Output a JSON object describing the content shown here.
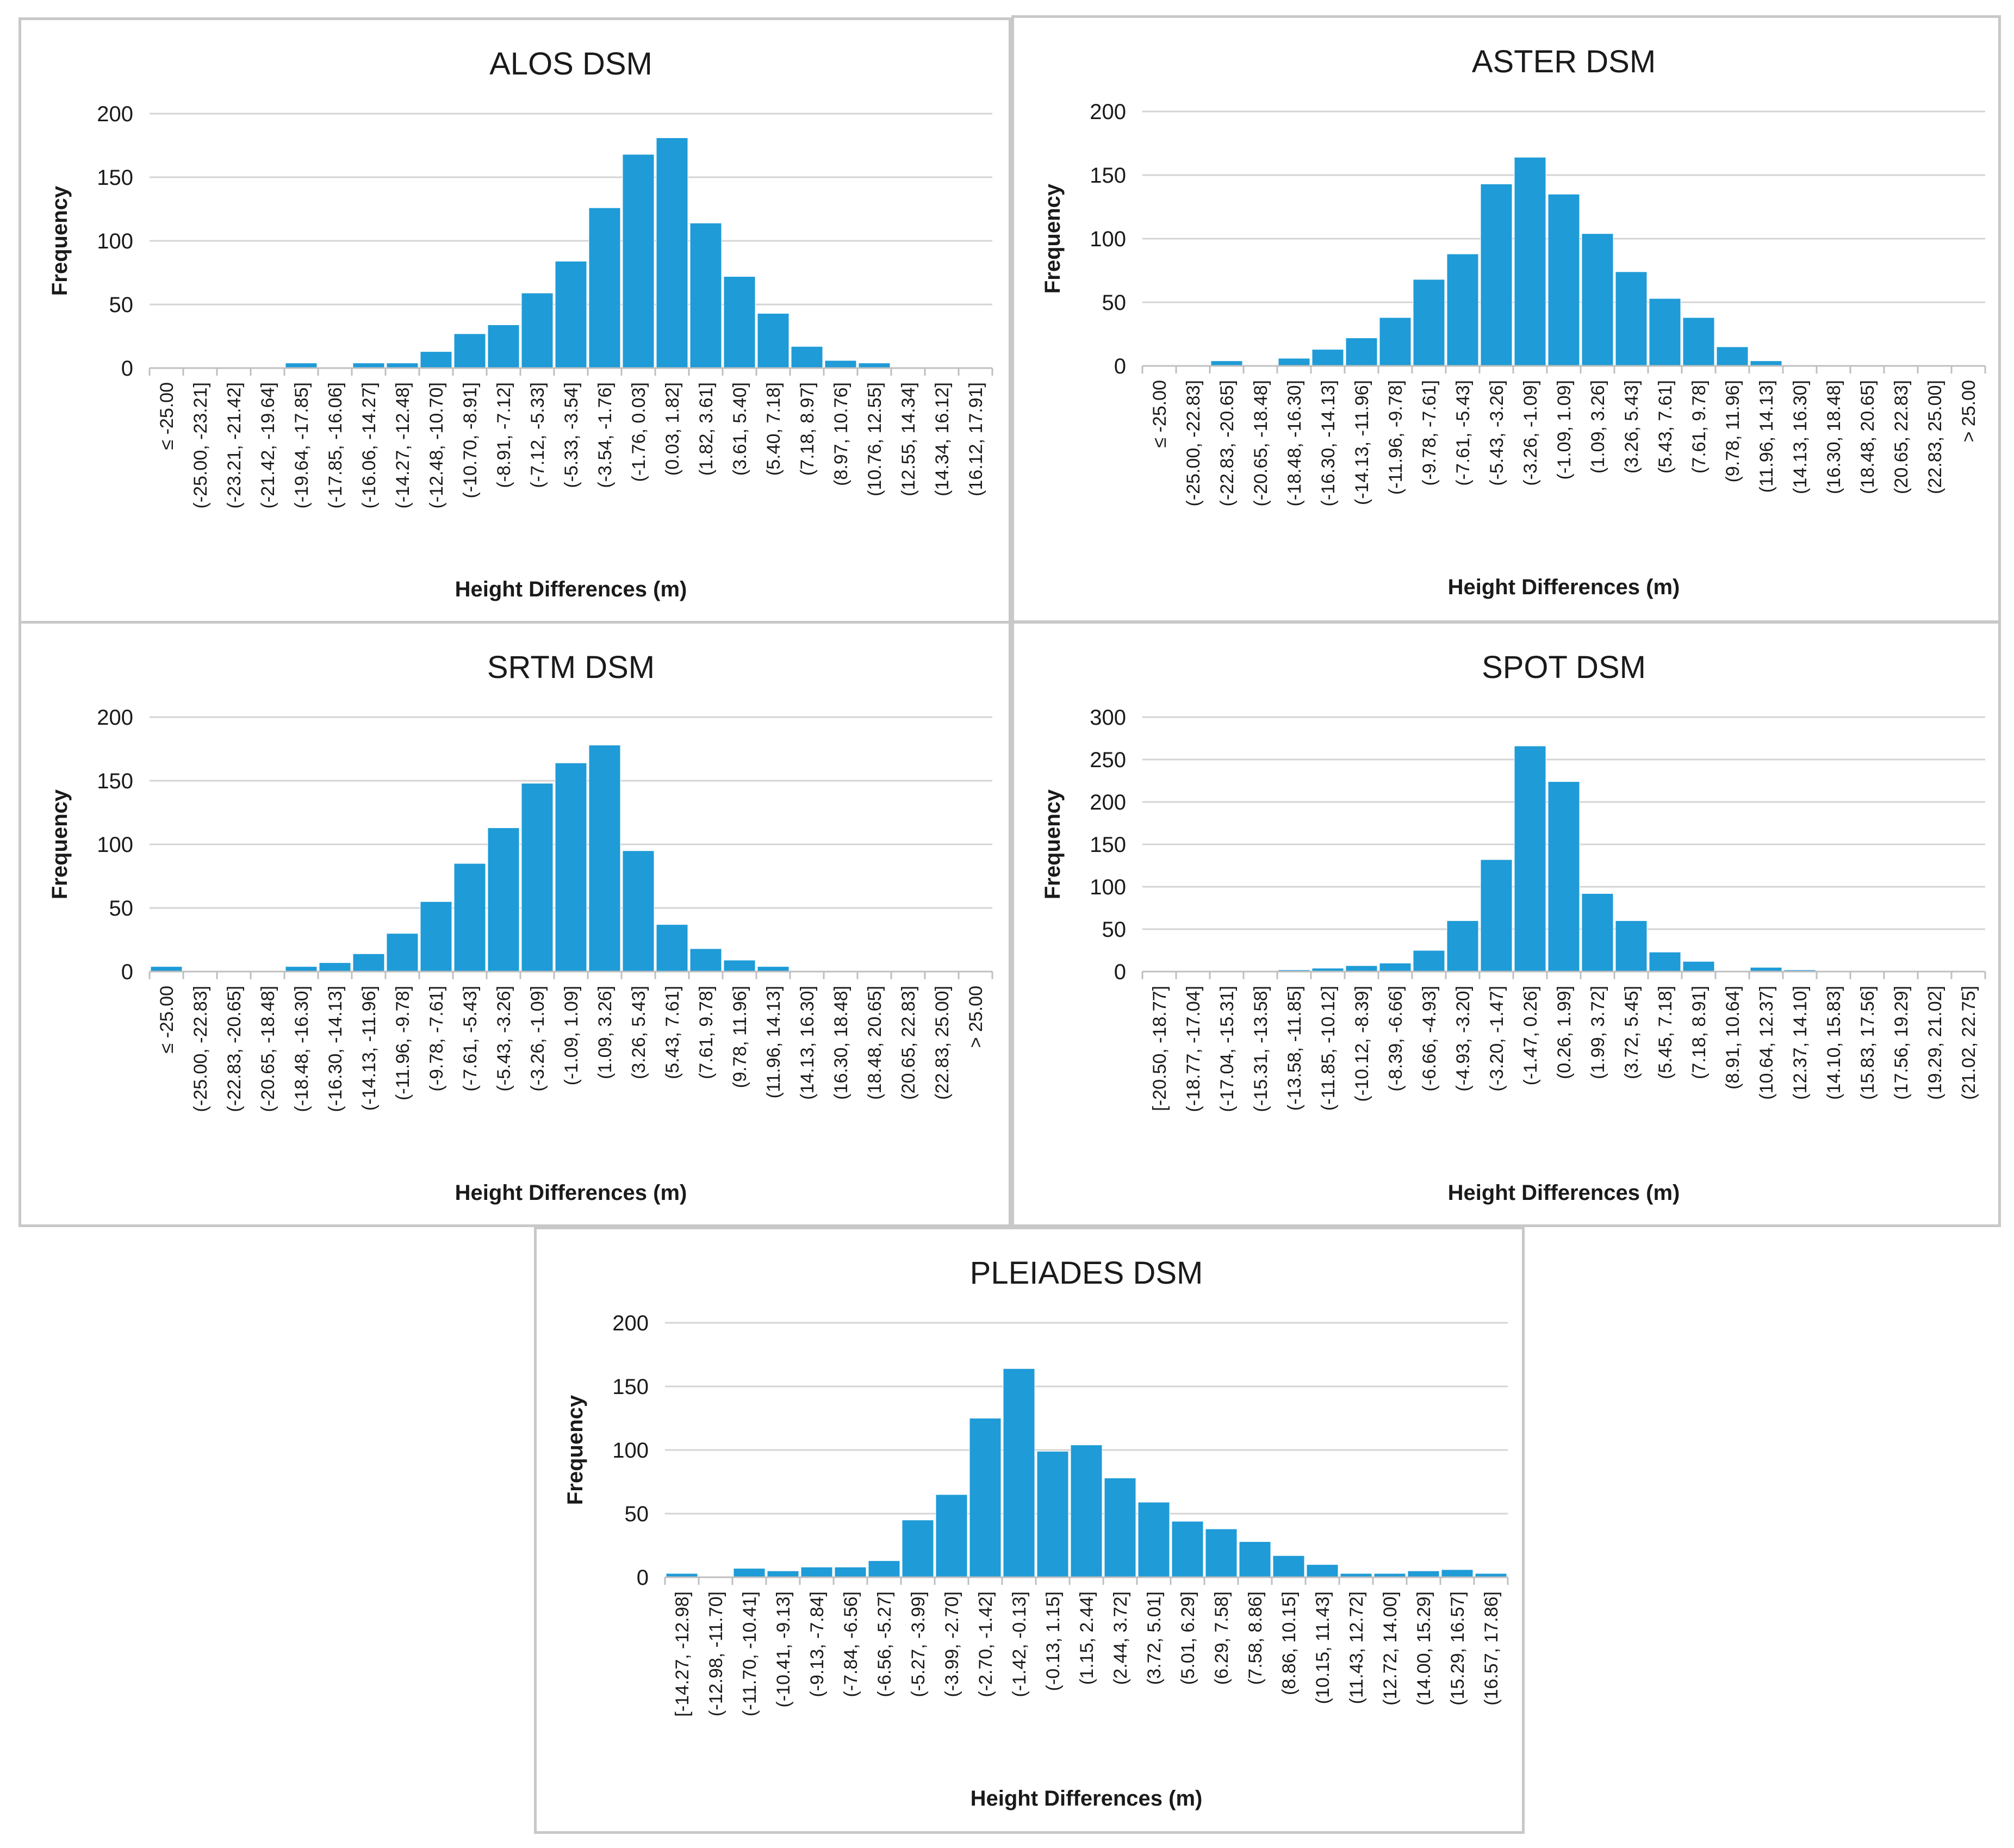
{
  "chart_data": [
    {
      "type": "bar",
      "title": "ALOS DSM",
      "xlabel": "Height Differences (m)",
      "ylabel": "Frequency",
      "ylim": [
        0,
        200
      ],
      "yticks": [
        0,
        50,
        100,
        150,
        200
      ],
      "grid": true,
      "color": "#1f9bd7",
      "categories": [
        "≤ -25.00",
        "(-25.00, -23.21]",
        "(-23.21, -21.42]",
        "(-21.42, -19.64]",
        "(-19.64, -17.85]",
        "(-17.85, -16.06]",
        "(-16.06, -14.27]",
        "(-14.27, -12.48]",
        "(-12.48, -10.70]",
        "(-10.70, -8.91]",
        "(-8.91, -7.12]",
        "(-7.12, -5.33]",
        "(-5.33, -3.54]",
        "(-3.54, -1.76]",
        "(-1.76, 0.03]",
        "(0.03, 1.82]",
        "(1.82, 3.61]",
        "(3.61, 5.40]",
        "(5.40, 7.18]",
        "(7.18, 8.97]",
        "(8.97, 10.76]",
        "(10.76, 12.55]",
        "(12.55, 14.34]",
        "(14.34, 16.12]",
        "(16.12, 17.91]"
      ],
      "values": [
        0,
        0,
        0,
        0,
        4,
        0,
        4,
        4,
        13,
        27,
        34,
        59,
        84,
        126,
        168,
        181,
        114,
        72,
        43,
        17,
        6,
        4,
        0,
        0,
        0
      ]
    },
    {
      "type": "bar",
      "title": "ASTER DSM",
      "xlabel": "Height Differences (m)",
      "ylabel": "Frequency",
      "ylim": [
        0,
        200
      ],
      "yticks": [
        0,
        50,
        100,
        150,
        200
      ],
      "grid": true,
      "color": "#1f9bd7",
      "categories": [
        "≤ -25.00",
        "(-25.00, -22.83]",
        "(-22.83, -20.65]",
        "(-20.65, -18.48]",
        "(-18.48, -16.30]",
        "(-16.30, -14.13]",
        "(-14.13, -11.96]",
        "(-11.96, -9.78]",
        "(-9.78, -7.61]",
        "(-7.61, -5.43]",
        "(-5.43, -3.26]",
        "(-3.26, -1.09]",
        "(-1.09, 1.09]",
        "(1.09, 3.26]",
        "(3.26, 5.43]",
        "(5.43, 7.61]",
        "(7.61, 9.78]",
        "(9.78, 11.96]",
        "(11.96, 14.13]",
        "(14.13, 16.30]",
        "(16.30, 18.48]",
        "(18.48, 20.65]",
        "(20.65, 22.83]",
        "(22.83, 25.00]",
        "> 25.00"
      ],
      "values": [
        0,
        0,
        4,
        0,
        6,
        13,
        22,
        38,
        68,
        88,
        143,
        164,
        135,
        104,
        74,
        53,
        38,
        15,
        4,
        0,
        0,
        0,
        0,
        0,
        0
      ]
    },
    {
      "type": "bar",
      "title": "SRTM DSM",
      "xlabel": "Height Differences (m)",
      "ylabel": "Frequency",
      "ylim": [
        0,
        200
      ],
      "yticks": [
        0,
        50,
        100,
        150,
        200
      ],
      "grid": true,
      "color": "#1f9bd7",
      "categories": [
        "≤ -25.00",
        "(-25.00, -22.83]",
        "(-22.83, -20.65]",
        "(-20.65, -18.48]",
        "(-18.48, -16.30]",
        "(-16.30, -14.13]",
        "(-14.13, -11.96]",
        "(-11.96, -9.78]",
        "(-9.78, -7.61]",
        "(-7.61, -5.43]",
        "(-5.43, -3.26]",
        "(-3.26, -1.09]",
        "(-1.09, 1.09]",
        "(1.09, 3.26]",
        "(3.26, 5.43]",
        "(5.43, 7.61]",
        "(7.61, 9.78]",
        "(9.78, 11.96]",
        "(11.96, 14.13]",
        "(14.13, 16.30]",
        "(16.30, 18.48]",
        "(18.48, 20.65]",
        "(20.65, 22.83]",
        "(22.83, 25.00]",
        "> 25.00"
      ],
      "values": [
        4,
        0,
        0,
        0,
        4,
        7,
        14,
        30,
        55,
        85,
        113,
        148,
        164,
        178,
        95,
        37,
        18,
        9,
        4,
        0,
        0,
        0,
        0,
        0,
        0
      ]
    },
    {
      "type": "bar",
      "title": "SPOT DSM",
      "xlabel": "Height Differences (m)",
      "ylabel": "Frequency",
      "ylim": [
        0,
        300
      ],
      "yticks": [
        0,
        50,
        100,
        150,
        200,
        250,
        300
      ],
      "grid": true,
      "color": "#1f9bd7",
      "categories": [
        "[-20.50, -18.77]",
        "(-18.77, -17.04]",
        "(-17.04, -15.31]",
        "(-15.31, -13.58]",
        "(-13.58, -11.85]",
        "(-11.85, -10.12]",
        "(-10.12, -8.39]",
        "(-8.39, -6.66]",
        "(-6.66, -4.93]",
        "(-4.93, -3.20]",
        "(-3.20, -1.47]",
        "(-1.47, 0.26]",
        "(0.26, 1.99]",
        "(1.99, 3.72]",
        "(3.72, 5.45]",
        "(5.45, 7.18]",
        "(7.18, 8.91]",
        "(8.91, 10.64]",
        "(10.64, 12.37]",
        "(12.37, 14.10]",
        "(14.10, 15.83]",
        "(15.83, 17.56]",
        "(17.56, 19.29]",
        "(19.29, 21.02]",
        "(21.02, 22.75]"
      ],
      "values": [
        0,
        0,
        0,
        0,
        2,
        4,
        7,
        10,
        25,
        60,
        132,
        266,
        224,
        92,
        60,
        23,
        12,
        0,
        5,
        2,
        0,
        0,
        0,
        0,
        0
      ]
    },
    {
      "type": "bar",
      "title": "PLEIADES DSM",
      "xlabel": "Height Differences (m)",
      "ylabel": "Frequency",
      "ylim": [
        0,
        200
      ],
      "yticks": [
        0,
        50,
        100,
        150,
        200
      ],
      "grid": true,
      "color": "#1f9bd7",
      "categories": [
        "[-14.27, -12.98]",
        "(-12.98, -11.70]",
        "(-11.70, -10.41]",
        "(-10.41, -9.13]",
        "(-9.13, -7.84]",
        "(-7.84, -6.56]",
        "(-6.56, -5.27]",
        "(-5.27, -3.99]",
        "(-3.99, -2.70]",
        "(-2.70, -1.42]",
        "(-1.42, -0.13]",
        "(-0.13, 1.15]",
        "(1.15, 2.44]",
        "(2.44, 3.72]",
        "(3.72, 5.01]",
        "(5.01, 6.29]",
        "(6.29, 7.58]",
        "(7.58, 8.86]",
        "(8.86, 10.15]",
        "(10.15, 11.43]",
        "(11.43, 12.72]",
        "(12.72, 14.00]",
        "(14.00, 15.29]",
        "(15.29, 16.57]",
        "(16.57, 17.86]"
      ],
      "values": [
        3,
        0,
        7,
        5,
        8,
        8,
        13,
        45,
        65,
        125,
        164,
        99,
        104,
        78,
        59,
        44,
        38,
        28,
        17,
        10,
        3,
        3,
        5,
        6,
        3
      ]
    }
  ]
}
